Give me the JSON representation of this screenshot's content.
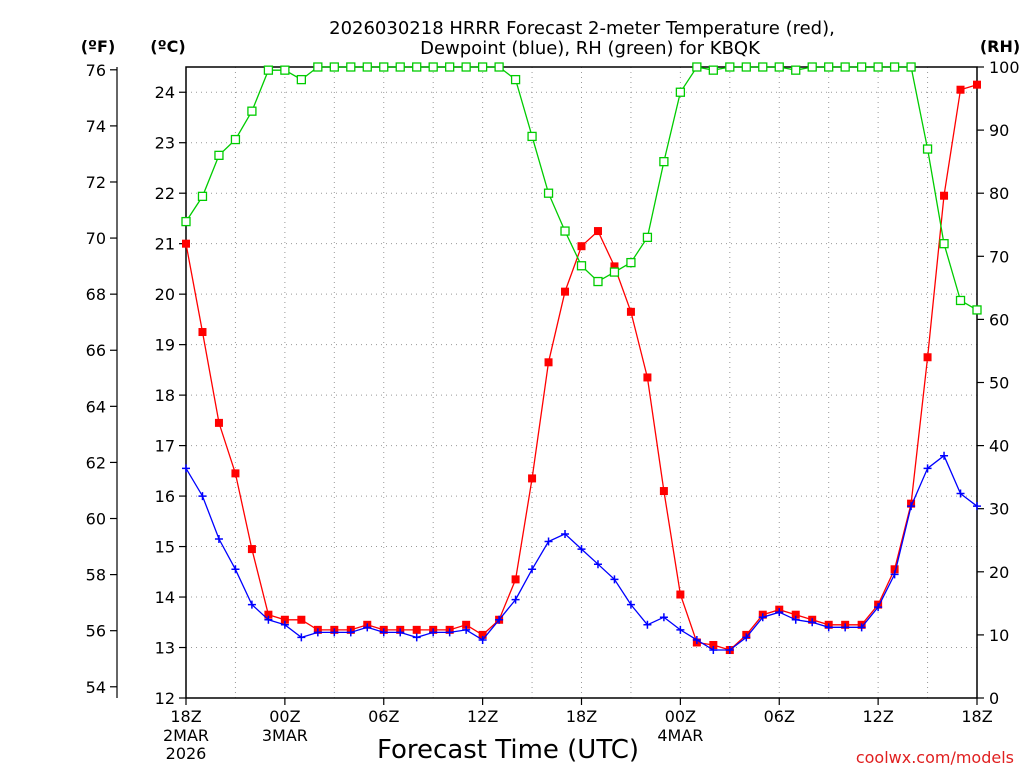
{
  "chart_data": {
    "type": "line",
    "title_lines": [
      "2026030218 HRRR Forecast 2-meter Temperature (red),",
      "Dewpoint (blue), RH (green) for KBQK"
    ],
    "xlabel": "Forecast Time (UTC)",
    "credit": "coolwx.com/models",
    "unit_labels": {
      "fahrenheit": "(ºF)",
      "celsius": "(ºC)",
      "rh": "(RH)"
    },
    "x_hours_range": [
      0,
      48
    ],
    "x_ticks": [
      {
        "hour": 0,
        "label": "18Z",
        "sub": [
          "2MAR",
          "2026"
        ]
      },
      {
        "hour": 6,
        "label": "00Z",
        "sub": [
          "3MAR"
        ]
      },
      {
        "hour": 12,
        "label": "06Z",
        "sub": []
      },
      {
        "hour": 18,
        "label": "12Z",
        "sub": []
      },
      {
        "hour": 24,
        "label": "18Z",
        "sub": []
      },
      {
        "hour": 30,
        "label": "00Z",
        "sub": [
          "4MAR"
        ]
      },
      {
        "hour": 36,
        "label": "06Z",
        "sub": []
      },
      {
        "hour": 42,
        "label": "12Z",
        "sub": []
      },
      {
        "hour": 48,
        "label": "18Z",
        "sub": []
      }
    ],
    "y_celsius": {
      "range": [
        12,
        24.5
      ],
      "ticks": [
        12,
        13,
        14,
        15,
        16,
        17,
        18,
        19,
        20,
        21,
        22,
        23,
        24
      ]
    },
    "y_fahrenheit": {
      "ticks": [
        54,
        56,
        58,
        60,
        62,
        64,
        66,
        68,
        70,
        72,
        74,
        76
      ]
    },
    "y_rh": {
      "range": [
        0,
        100
      ],
      "ticks": [
        0,
        10,
        20,
        30,
        40,
        50,
        60,
        70,
        80,
        90,
        100
      ]
    },
    "grid": true,
    "series": [
      {
        "name": "2-meter Temperature",
        "color": "#ff0000",
        "marker": "filled-square",
        "units": "C",
        "values": [
          21.0,
          19.25,
          17.45,
          16.45,
          14.95,
          13.65,
          13.55,
          13.55,
          13.35,
          13.35,
          13.35,
          13.45,
          13.35,
          13.35,
          13.35,
          13.35,
          13.35,
          13.45,
          13.25,
          13.55,
          14.35,
          16.35,
          18.65,
          20.05,
          20.95,
          21.25,
          20.55,
          19.65,
          18.35,
          16.1,
          14.05,
          13.1,
          13.05,
          12.95,
          13.25,
          13.65,
          13.75,
          13.65,
          13.55,
          13.45,
          13.45,
          13.45,
          13.85,
          14.55,
          15.85,
          18.75,
          21.95,
          24.05,
          24.15
        ]
      },
      {
        "name": "Dewpoint",
        "color": "#0000ff",
        "marker": "plus",
        "units": "C",
        "values": [
          16.55,
          16.0,
          15.15,
          14.55,
          13.85,
          13.55,
          13.45,
          13.2,
          13.3,
          13.3,
          13.3,
          13.4,
          13.3,
          13.3,
          13.2,
          13.3,
          13.3,
          13.35,
          13.15,
          13.55,
          13.95,
          14.55,
          15.1,
          15.25,
          14.95,
          14.65,
          14.35,
          13.85,
          13.45,
          13.6,
          13.35,
          13.15,
          12.95,
          12.95,
          13.2,
          13.6,
          13.7,
          13.55,
          13.5,
          13.4,
          13.4,
          13.4,
          13.8,
          14.45,
          15.8,
          16.55,
          16.8,
          16.05,
          15.8
        ]
      },
      {
        "name": "RH",
        "color": "#00cc00",
        "marker": "open-square",
        "units": "%",
        "values": [
          75.5,
          79.5,
          86.0,
          88.5,
          93.0,
          99.5,
          99.5,
          98.0,
          100,
          100,
          100,
          100,
          100,
          100,
          100,
          100,
          100,
          100,
          100,
          100,
          98,
          89,
          80,
          74,
          68.5,
          66,
          67.5,
          69,
          73,
          85,
          96,
          100,
          99.5,
          100,
          100,
          100,
          100,
          99.5,
          100,
          100,
          100,
          100,
          100,
          100,
          100,
          87,
          72,
          63,
          61.5
        ]
      }
    ]
  }
}
